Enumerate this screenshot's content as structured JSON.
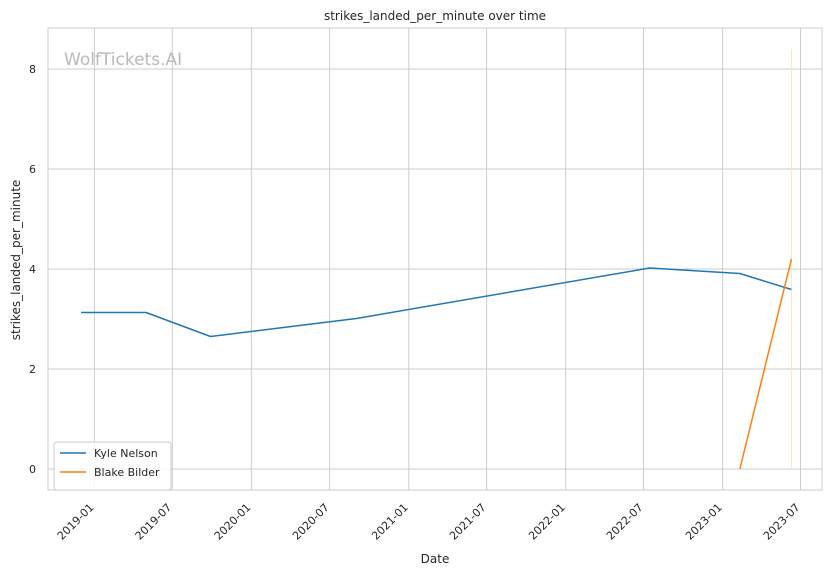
{
  "chart_data": {
    "type": "line",
    "title": "strikes_landed_per_minute over time",
    "xlabel": "Date",
    "ylabel": "strikes_landed_per_minute",
    "watermark": "WolfTickets.AI",
    "x_ticks": [
      "2019-01",
      "2019-07",
      "2020-01",
      "2020-07",
      "2021-01",
      "2021-07",
      "2022-01",
      "2022-07",
      "2023-01",
      "2023-07"
    ],
    "y_ticks": [
      0,
      2,
      4,
      6,
      8
    ],
    "xlim": [
      "2018-09-15",
      "2023-08-20"
    ],
    "ylim": [
      -0.42,
      8.82
    ],
    "grid": true,
    "legend_position": "lower-left",
    "series": [
      {
        "name": "Kyle Nelson",
        "color": "#1f77b4",
        "points": [
          {
            "x": "2018-12-01",
            "y": 3.13
          },
          {
            "x": "2019-05-01",
            "y": 3.13
          },
          {
            "x": "2019-09-28",
            "y": 2.65
          },
          {
            "x": "2020-09-01",
            "y": 3.01
          },
          {
            "x": "2022-07-15",
            "y": 4.02
          },
          {
            "x": "2023-02-10",
            "y": 3.91
          },
          {
            "x": "2023-06-10",
            "y": 3.59
          }
        ]
      },
      {
        "name": "Blake Bilder",
        "color": "#ff7f0e",
        "points": [
          {
            "x": "2023-02-10",
            "y": 0
          },
          {
            "x": "2023-06-10",
            "y": 4.2
          }
        ]
      }
    ],
    "annotations": [
      {
        "type": "vertical-line",
        "x": "2023-06-10",
        "y_from": 0,
        "y_to": 8.4,
        "color": "#ffe4c4"
      }
    ]
  }
}
